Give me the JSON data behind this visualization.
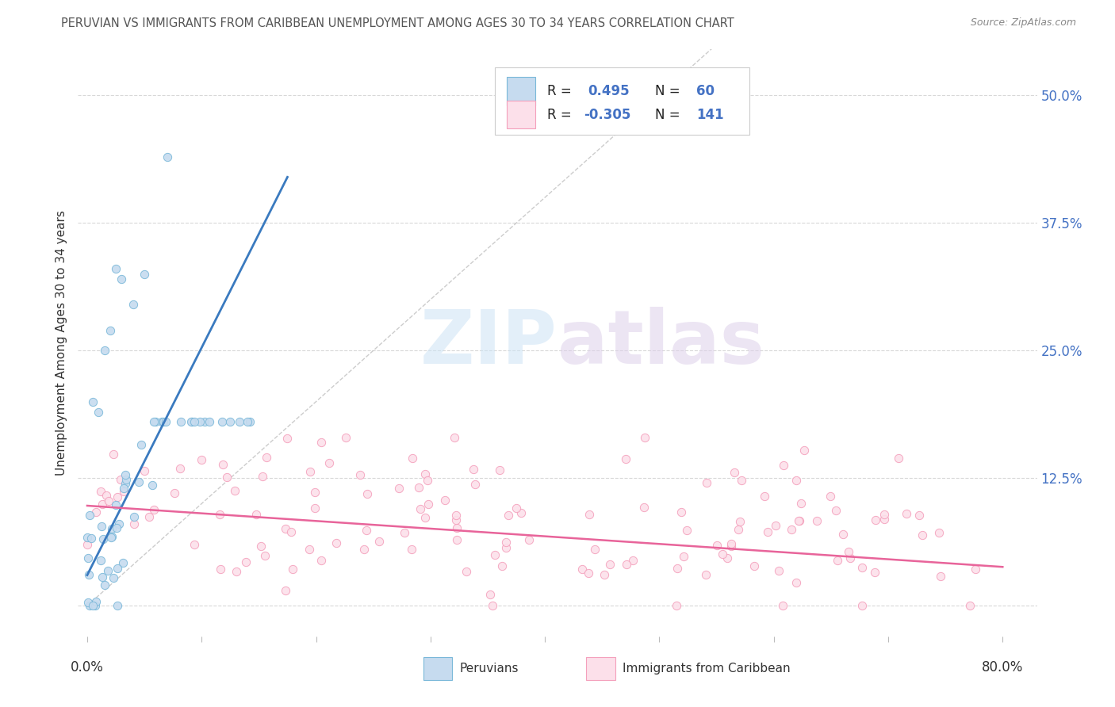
{
  "title": "PERUVIAN VS IMMIGRANTS FROM CARIBBEAN UNEMPLOYMENT AMONG AGES 30 TO 34 YEARS CORRELATION CHART",
  "source": "Source: ZipAtlas.com",
  "ylabel": "Unemployment Among Ages 30 to 34 years",
  "yticks": [
    0.0,
    0.125,
    0.25,
    0.375,
    0.5
  ],
  "ytick_labels": [
    "",
    "12.5%",
    "25.0%",
    "37.5%",
    "50.0%"
  ],
  "xlim": [
    -0.008,
    0.83
  ],
  "ylim": [
    -0.03,
    0.545
  ],
  "R_peruvian": 0.495,
  "N_peruvian": 60,
  "R_caribbean": -0.305,
  "N_caribbean": 141,
  "peruvian_edge": "#7ab8d9",
  "peruvian_fill": "#c6dbef",
  "caribbean_edge": "#f4a0bc",
  "caribbean_fill": "#fce0ea",
  "trend_peruvian_color": "#3a7abf",
  "trend_caribbean_color": "#e8649a",
  "diagonal_color": "#c0c0c0",
  "watermark": "ZIPatlas",
  "watermark_zip_color": "#c8dff0",
  "watermark_atlas_color": "#d8c8e8",
  "legend_labels": [
    "Peruvians",
    "Immigrants from Caribbean"
  ],
  "background_color": "#ffffff",
  "grid_color": "#d8d8d8",
  "axis_label_color": "#4472c4",
  "text_color": "#333333",
  "title_color": "#555555",
  "source_color": "#888888"
}
